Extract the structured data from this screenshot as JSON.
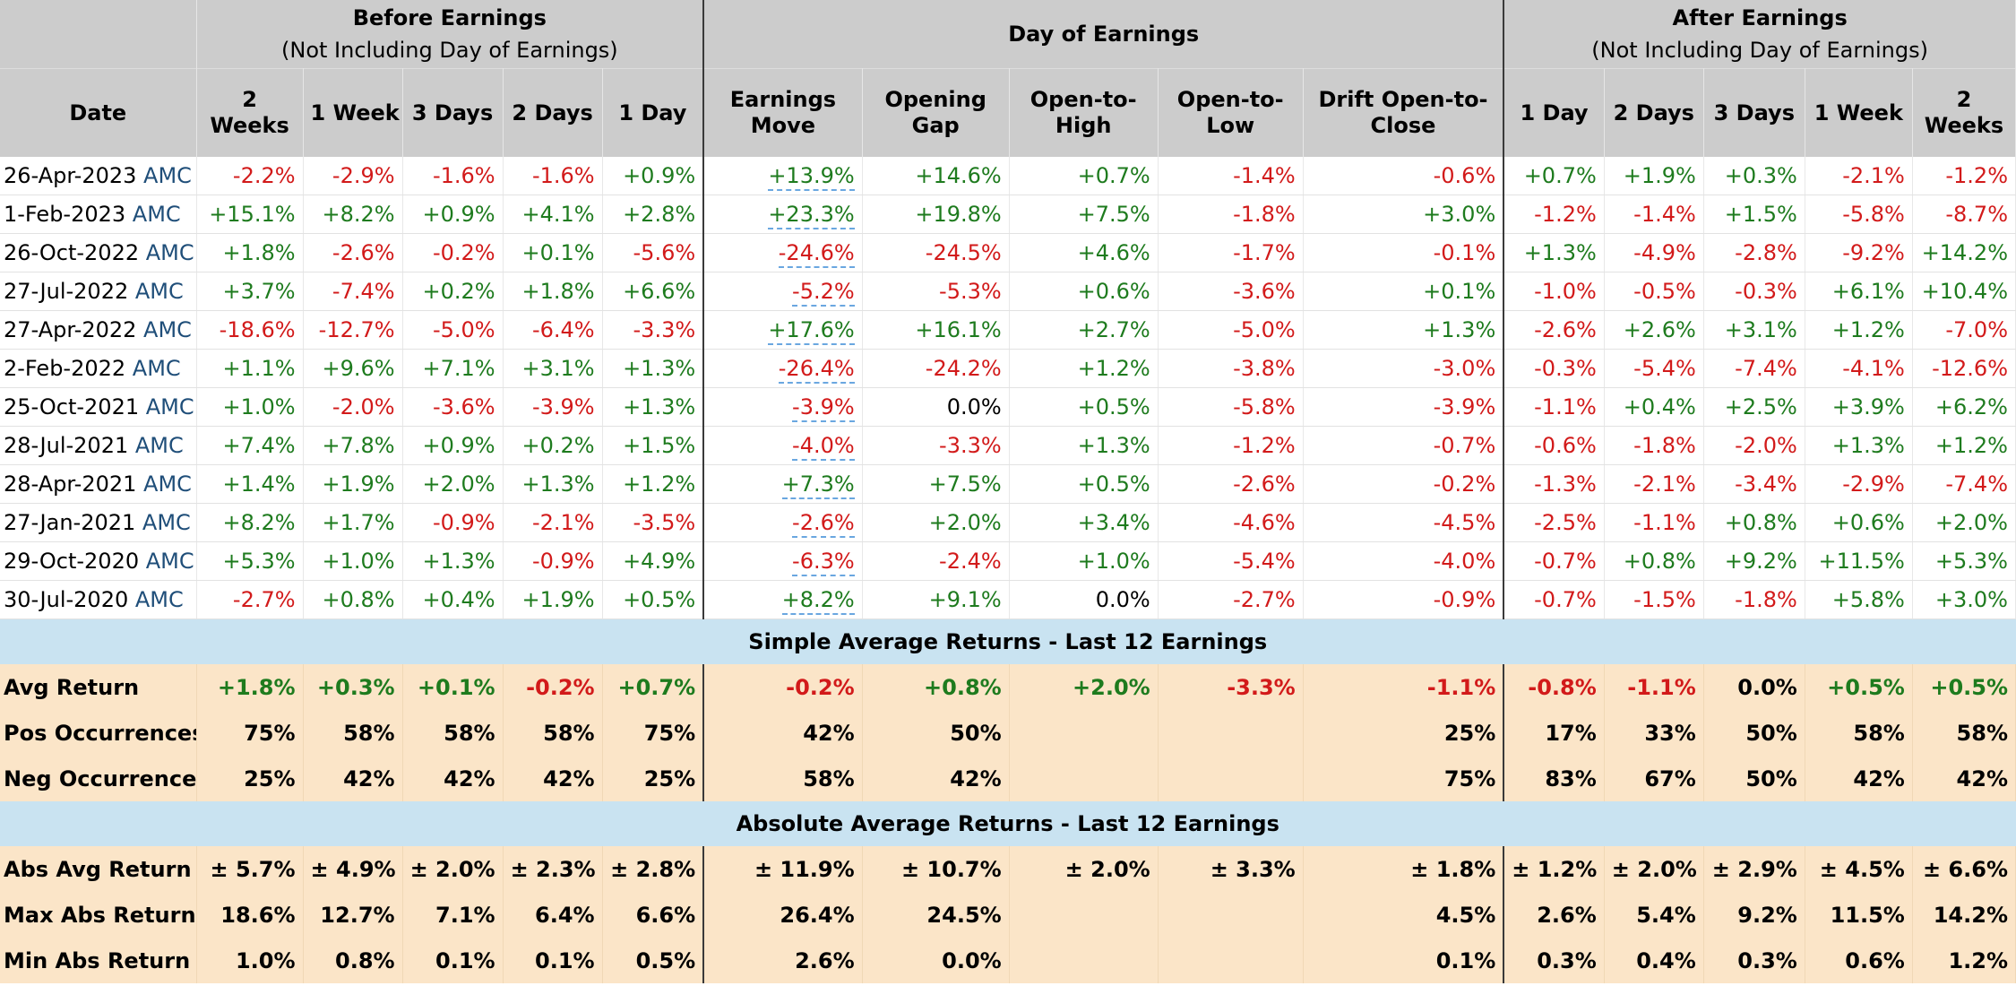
{
  "groups": {
    "before": {
      "title": "Before Earnings",
      "sub": "(Not Including Day of Earnings)"
    },
    "day": {
      "title": "Day of Earnings"
    },
    "after": {
      "title": "After Earnings",
      "sub": "(Not Including Day of Earnings)"
    }
  },
  "columns": {
    "date": "Date",
    "b2w": "2 Weeks",
    "b1w": "1 Week",
    "b3d": "3 Days",
    "b2d": "2 Days",
    "b1d": "1 Day",
    "em": "Earnings Move",
    "og": "Opening Gap",
    "oh": "Open-to-High",
    "ol": "Open-to-Low",
    "dc": "Drift Open-to-Close",
    "a1d": "1 Day",
    "a2d": "2 Days",
    "a3d": "3 Days",
    "a1w": "1 Week",
    "a2w": "2 Weeks"
  },
  "rows": [
    {
      "date": "26-Apr-2023",
      "tag": "AMC",
      "cells": [
        "-2.2%",
        "-2.9%",
        "-1.6%",
        "-1.6%",
        "+0.9%",
        "+13.9%",
        "+14.6%",
        "+0.7%",
        "-1.4%",
        "-0.6%",
        "+0.7%",
        "+1.9%",
        "+0.3%",
        "-2.1%",
        "-1.2%"
      ]
    },
    {
      "date": "1-Feb-2023",
      "tag": "AMC",
      "cells": [
        "+15.1%",
        "+8.2%",
        "+0.9%",
        "+4.1%",
        "+2.8%",
        "+23.3%",
        "+19.8%",
        "+7.5%",
        "-1.8%",
        "+3.0%",
        "-1.2%",
        "-1.4%",
        "+1.5%",
        "-5.8%",
        "-8.7%"
      ]
    },
    {
      "date": "26-Oct-2022",
      "tag": "AMC",
      "cells": [
        "+1.8%",
        "-2.6%",
        "-0.2%",
        "+0.1%",
        "-5.6%",
        "-24.6%",
        "-24.5%",
        "+4.6%",
        "-1.7%",
        "-0.1%",
        "+1.3%",
        "-4.9%",
        "-2.8%",
        "-9.2%",
        "+14.2%"
      ]
    },
    {
      "date": "27-Jul-2022",
      "tag": "AMC",
      "cells": [
        "+3.7%",
        "-7.4%",
        "+0.2%",
        "+1.8%",
        "+6.6%",
        "-5.2%",
        "-5.3%",
        "+0.6%",
        "-3.6%",
        "+0.1%",
        "-1.0%",
        "-0.5%",
        "-0.3%",
        "+6.1%",
        "+10.4%"
      ]
    },
    {
      "date": "27-Apr-2022",
      "tag": "AMC",
      "cells": [
        "-18.6%",
        "-12.7%",
        "-5.0%",
        "-6.4%",
        "-3.3%",
        "+17.6%",
        "+16.1%",
        "+2.7%",
        "-5.0%",
        "+1.3%",
        "-2.6%",
        "+2.6%",
        "+3.1%",
        "+1.2%",
        "-7.0%"
      ]
    },
    {
      "date": "2-Feb-2022",
      "tag": "AMC",
      "cells": [
        "+1.1%",
        "+9.6%",
        "+7.1%",
        "+3.1%",
        "+1.3%",
        "-26.4%",
        "-24.2%",
        "+1.2%",
        "-3.8%",
        "-3.0%",
        "-0.3%",
        "-5.4%",
        "-7.4%",
        "-4.1%",
        "-12.6%"
      ]
    },
    {
      "date": "25-Oct-2021",
      "tag": "AMC",
      "cells": [
        "+1.0%",
        "-2.0%",
        "-3.6%",
        "-3.9%",
        "+1.3%",
        "-3.9%",
        "0.0%",
        "+0.5%",
        "-5.8%",
        "-3.9%",
        "-1.1%",
        "+0.4%",
        "+2.5%",
        "+3.9%",
        "+6.2%"
      ]
    },
    {
      "date": "28-Jul-2021",
      "tag": "AMC",
      "cells": [
        "+7.4%",
        "+7.8%",
        "+0.9%",
        "+0.2%",
        "+1.5%",
        "-4.0%",
        "-3.3%",
        "+1.3%",
        "-1.2%",
        "-0.7%",
        "-0.6%",
        "-1.8%",
        "-2.0%",
        "+1.3%",
        "+1.2%"
      ]
    },
    {
      "date": "28-Apr-2021",
      "tag": "AMC",
      "cells": [
        "+1.4%",
        "+1.9%",
        "+2.0%",
        "+1.3%",
        "+1.2%",
        "+7.3%",
        "+7.5%",
        "+0.5%",
        "-2.6%",
        "-0.2%",
        "-1.3%",
        "-2.1%",
        "-3.4%",
        "-2.9%",
        "-7.4%"
      ]
    },
    {
      "date": "27-Jan-2021",
      "tag": "AMC",
      "cells": [
        "+8.2%",
        "+1.7%",
        "-0.9%",
        "-2.1%",
        "-3.5%",
        "-2.6%",
        "+2.0%",
        "+3.4%",
        "-4.6%",
        "-4.5%",
        "-2.5%",
        "-1.1%",
        "+0.8%",
        "+0.6%",
        "+2.0%"
      ]
    },
    {
      "date": "29-Oct-2020",
      "tag": "AMC",
      "cells": [
        "+5.3%",
        "+1.0%",
        "+1.3%",
        "-0.9%",
        "+4.9%",
        "-6.3%",
        "-2.4%",
        "+1.0%",
        "-5.4%",
        "-4.0%",
        "-0.7%",
        "+0.8%",
        "+9.2%",
        "+11.5%",
        "+5.3%"
      ]
    },
    {
      "date": "30-Jul-2020",
      "tag": "AMC",
      "cells": [
        "-2.7%",
        "+0.8%",
        "+0.4%",
        "+1.9%",
        "+0.5%",
        "+8.2%",
        "+9.1%",
        "0.0%",
        "-2.7%",
        "-0.9%",
        "-0.7%",
        "-1.5%",
        "-1.8%",
        "+5.8%",
        "+3.0%"
      ]
    }
  ],
  "simple": {
    "title": "Simple Average Returns - Last 12 Earnings",
    "rows": [
      {
        "label": "Avg Return",
        "cells": [
          "+1.8%",
          "+0.3%",
          "+0.1%",
          "-0.2%",
          "+0.7%",
          "-0.2%",
          "+0.8%",
          "+2.0%",
          "-3.3%",
          "-1.1%",
          "-0.8%",
          "-1.1%",
          "0.0%",
          "+0.5%",
          "+0.5%"
        ]
      },
      {
        "label": "Pos Occurrences",
        "cells": [
          "75%",
          "58%",
          "58%",
          "58%",
          "75%",
          "42%",
          "50%",
          "",
          "",
          "25%",
          "17%",
          "33%",
          "50%",
          "58%",
          "58%"
        ]
      },
      {
        "label": "Neg Occurrences",
        "cells": [
          "25%",
          "42%",
          "42%",
          "42%",
          "25%",
          "58%",
          "42%",
          "",
          "",
          "75%",
          "83%",
          "67%",
          "50%",
          "42%",
          "42%"
        ]
      }
    ]
  },
  "absolute": {
    "title": "Absolute Average Returns - Last 12 Earnings",
    "rows": [
      {
        "label": "Abs Avg Return",
        "cells": [
          "± 5.7%",
          "± 4.9%",
          "± 2.0%",
          "± 2.3%",
          "± 2.8%",
          "± 11.9%",
          "± 10.7%",
          "± 2.0%",
          "± 3.3%",
          "± 1.8%",
          "± 1.2%",
          "± 2.0%",
          "± 2.9%",
          "± 4.5%",
          "± 6.6%"
        ]
      },
      {
        "label": "Max Abs Return",
        "cells": [
          "18.6%",
          "12.7%",
          "7.1%",
          "6.4%",
          "6.6%",
          "26.4%",
          "24.5%",
          "",
          "",
          "4.5%",
          "2.6%",
          "5.4%",
          "9.2%",
          "11.5%",
          "14.2%"
        ]
      },
      {
        "label": "Min Abs Return",
        "cells": [
          "1.0%",
          "0.8%",
          "0.1%",
          "0.1%",
          "0.5%",
          "2.6%",
          "0.0%",
          "",
          "",
          "0.1%",
          "0.3%",
          "0.4%",
          "0.3%",
          "0.6%",
          "1.2%"
        ]
      }
    ]
  },
  "colors": {
    "positive": "#1e7b1e",
    "negative": "#d21a1a",
    "ticker": "#1f4e79",
    "header_bg": "#cccccc",
    "section_bg": "#c9e3f1",
    "stats_bg": "#fbe5c8"
  }
}
